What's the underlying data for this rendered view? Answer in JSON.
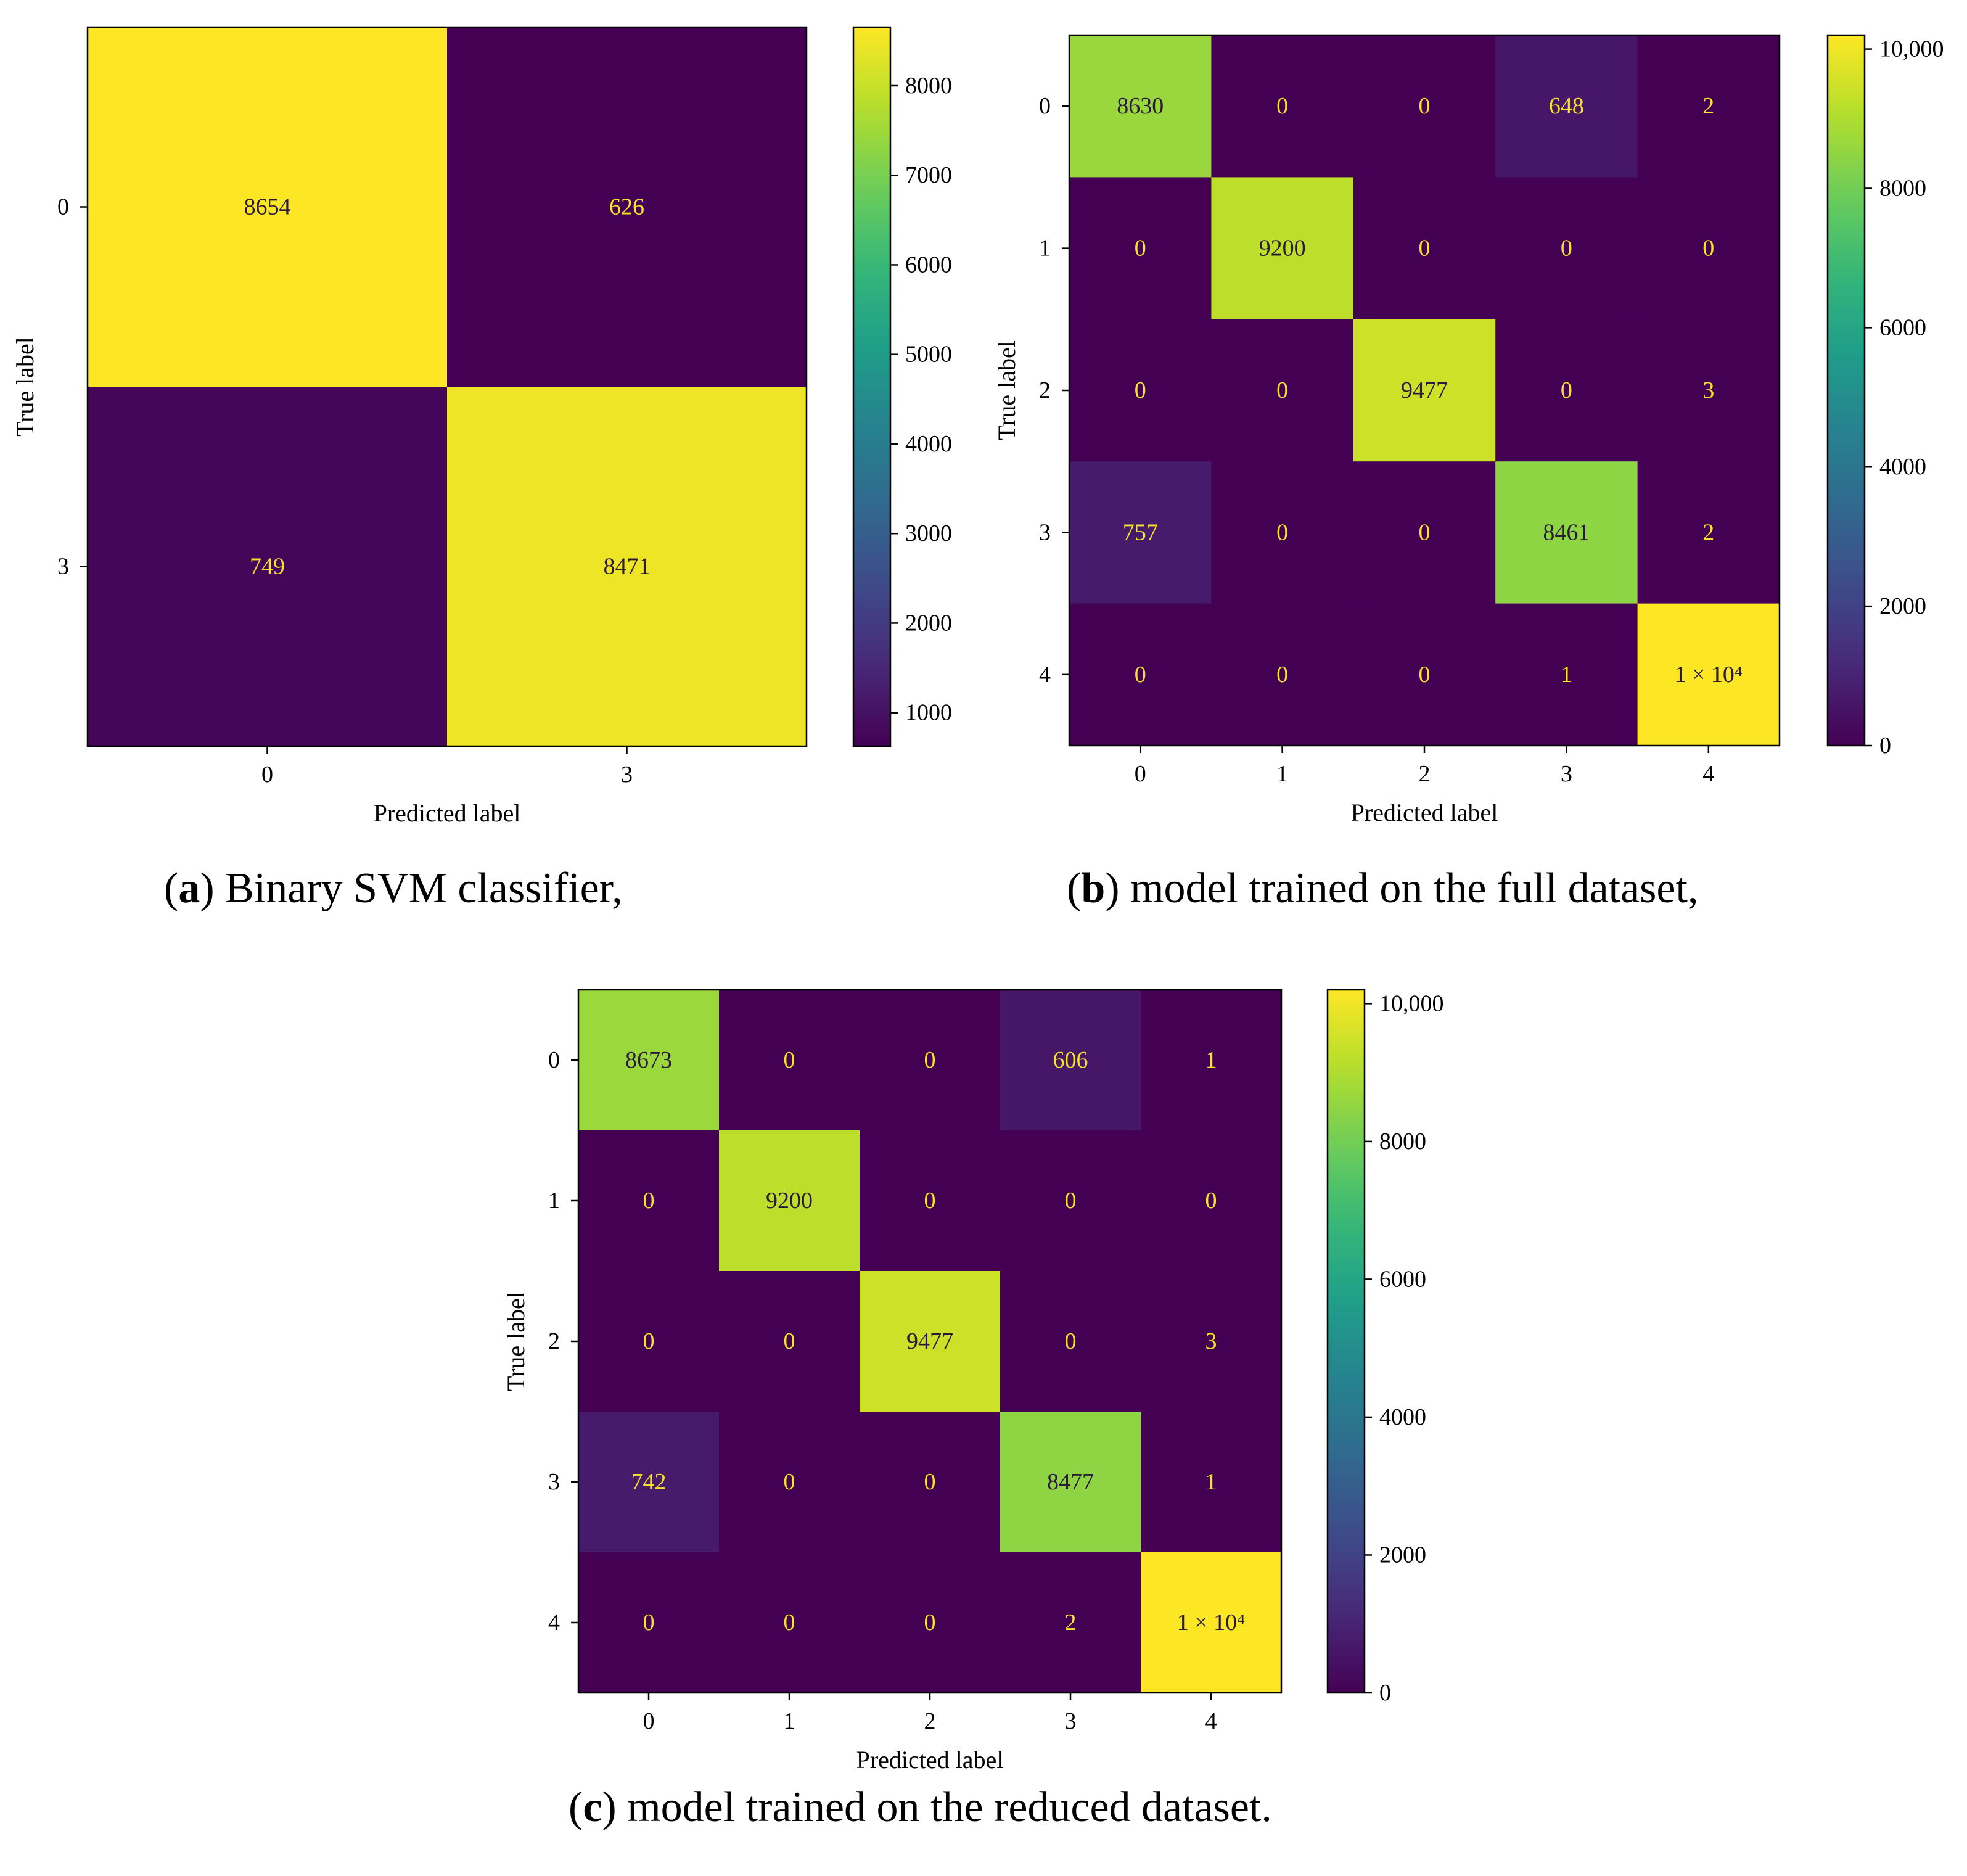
{
  "chart_data": [
    {
      "type": "heatmap",
      "panel": "a",
      "caption_letter": "a",
      "caption_text": "Binary SVM classifier,",
      "xlabel": "Predicted label",
      "ylabel": "True label",
      "x_ticks": [
        "0",
        "3"
      ],
      "y_ticks": [
        "0",
        "3"
      ],
      "matrix": [
        [
          8654,
          626
        ],
        [
          749,
          8471
        ]
      ],
      "cell_labels": [
        [
          "8654",
          "626"
        ],
        [
          "749",
          "8471"
        ]
      ],
      "colorbar": {
        "min": 626,
        "max": 8654,
        "ticks": [
          1000,
          2000,
          3000,
          4000,
          5000,
          6000,
          7000,
          8000
        ],
        "tick_labels": [
          "1000",
          "2000",
          "3000",
          "4000",
          "5000",
          "6000",
          "7000",
          "8000"
        ]
      }
    },
    {
      "type": "heatmap",
      "panel": "b",
      "caption_letter": "b",
      "caption_text": "model trained on the full dataset,",
      "xlabel": "Predicted label",
      "ylabel": "True label",
      "x_ticks": [
        "0",
        "1",
        "2",
        "3",
        "4"
      ],
      "y_ticks": [
        "0",
        "1",
        "2",
        "3",
        "4"
      ],
      "matrix": [
        [
          8630,
          0,
          0,
          648,
          2
        ],
        [
          0,
          9200,
          0,
          0,
          0
        ],
        [
          0,
          0,
          9477,
          0,
          3
        ],
        [
          757,
          0,
          0,
          8461,
          2
        ],
        [
          0,
          0,
          0,
          1,
          10200
        ]
      ],
      "cell_labels": [
        [
          "8630",
          "0",
          "0",
          "648",
          "2"
        ],
        [
          "0",
          "9200",
          "0",
          "0",
          "0"
        ],
        [
          "0",
          "0",
          "9477",
          "0",
          "3"
        ],
        [
          "757",
          "0",
          "0",
          "8461",
          "2"
        ],
        [
          "0",
          "0",
          "0",
          "1",
          "1 × 10⁴"
        ]
      ],
      "colorbar": {
        "min": 0,
        "max": 10200,
        "ticks": [
          0,
          2000,
          4000,
          6000,
          8000,
          10000
        ],
        "tick_labels": [
          "0",
          "2000",
          "4000",
          "6000",
          "8000",
          "10,000"
        ]
      }
    },
    {
      "type": "heatmap",
      "panel": "c",
      "caption_letter": "c",
      "caption_text": "model trained on the reduced dataset.",
      "xlabel": "Predicted label",
      "ylabel": "True label",
      "x_ticks": [
        "0",
        "1",
        "2",
        "3",
        "4"
      ],
      "y_ticks": [
        "0",
        "1",
        "2",
        "3",
        "4"
      ],
      "matrix": [
        [
          8673,
          0,
          0,
          606,
          1
        ],
        [
          0,
          9200,
          0,
          0,
          0
        ],
        [
          0,
          0,
          9477,
          0,
          3
        ],
        [
          742,
          0,
          0,
          8477,
          1
        ],
        [
          0,
          0,
          0,
          2,
          10200
        ]
      ],
      "cell_labels": [
        [
          "8673",
          "0",
          "0",
          "606",
          "1"
        ],
        [
          "0",
          "9200",
          "0",
          "0",
          "0"
        ],
        [
          "0",
          "0",
          "9477",
          "0",
          "3"
        ],
        [
          "742",
          "0",
          "0",
          "8477",
          "1"
        ],
        [
          "0",
          "0",
          "0",
          "2",
          "1 × 10⁴"
        ]
      ],
      "colorbar": {
        "min": 0,
        "max": 10200,
        "ticks": [
          0,
          2000,
          4000,
          6000,
          8000,
          10000
        ],
        "tick_labels": [
          "0",
          "2000",
          "4000",
          "6000",
          "8000",
          "10,000"
        ]
      }
    }
  ]
}
